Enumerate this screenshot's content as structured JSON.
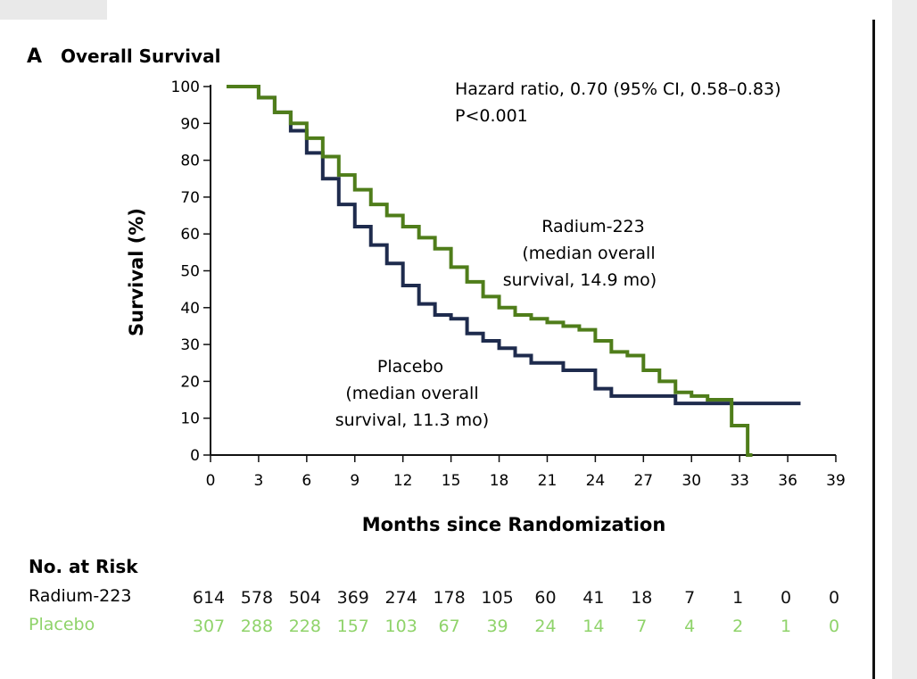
{
  "panel": {
    "letter": "A",
    "title": "Overall Survival"
  },
  "annotations": {
    "hazard": "Hazard ratio, 0.70 (95% CI, 0.58–0.83)",
    "p_value": "P<0.001",
    "radium_label": [
      "Radium-223",
      "(median overall",
      "survival, 14.9 mo)"
    ],
    "placebo_label": [
      "Placebo",
      "(median overall",
      "survival, 11.3 mo)"
    ]
  },
  "risk_table": {
    "heading": "No. at Risk",
    "rows": [
      {
        "label": "Radium-223",
        "color": "#4f7d1a",
        "values": [
          "614",
          "578",
          "504",
          "369",
          "274",
          "178",
          "105",
          "60",
          "41",
          "18",
          "7",
          "1",
          "0",
          "0"
        ]
      },
      {
        "label": "Placebo",
        "color": "#8fd36a",
        "values": [
          "307",
          "288",
          "228",
          "157",
          "103",
          "67",
          "39",
          "24",
          "14",
          "7",
          "4",
          "2",
          "1",
          "0"
        ]
      }
    ]
  },
  "chart_data": {
    "type": "line",
    "step": true,
    "xlabel": "Months since Randomization",
    "ylabel": "Survival (%)",
    "xlim": [
      0,
      39
    ],
    "ylim": [
      0,
      100
    ],
    "xticks": [
      0,
      3,
      6,
      9,
      12,
      15,
      18,
      21,
      24,
      27,
      30,
      33,
      36,
      39
    ],
    "yticks": [
      0,
      10,
      20,
      30,
      40,
      50,
      60,
      70,
      80,
      90,
      100
    ],
    "grid": false,
    "series": [
      {
        "name": "Radium-223",
        "color": "#4f7d1a",
        "x": [
          1,
          2,
          3,
          4,
          5,
          6,
          7,
          8,
          9,
          10,
          11,
          12,
          13,
          14,
          15,
          16,
          17,
          18,
          19,
          20,
          21,
          22,
          23,
          24,
          25,
          26,
          27,
          28,
          29,
          30,
          31,
          32,
          32.5,
          33.5,
          33.8
        ],
        "y": [
          100,
          100,
          97,
          93,
          90,
          86,
          81,
          76,
          72,
          68,
          65,
          62,
          59,
          56,
          51,
          47,
          43,
          40,
          38,
          37,
          36,
          35,
          34,
          31,
          28,
          27,
          23,
          20,
          17,
          16,
          15,
          15,
          8,
          0,
          0
        ]
      },
      {
        "name": "Placebo",
        "color": "#1e2b4d",
        "x": [
          1,
          2,
          3,
          4,
          5,
          6,
          7,
          8,
          9,
          10,
          11,
          12,
          13,
          14,
          15,
          16,
          17,
          18,
          19,
          20,
          21,
          22,
          23,
          24,
          25,
          26,
          27,
          28,
          29,
          30,
          31,
          32,
          33,
          34,
          35,
          36,
          36.8
        ],
        "y": [
          100,
          100,
          97,
          93,
          88,
          82,
          75,
          68,
          62,
          57,
          52,
          46,
          41,
          38,
          37,
          33,
          31,
          29,
          27,
          25,
          25,
          23,
          23,
          18,
          16,
          16,
          16,
          16,
          14,
          14,
          14,
          14,
          14,
          14,
          14,
          14,
          14
        ]
      }
    ]
  }
}
